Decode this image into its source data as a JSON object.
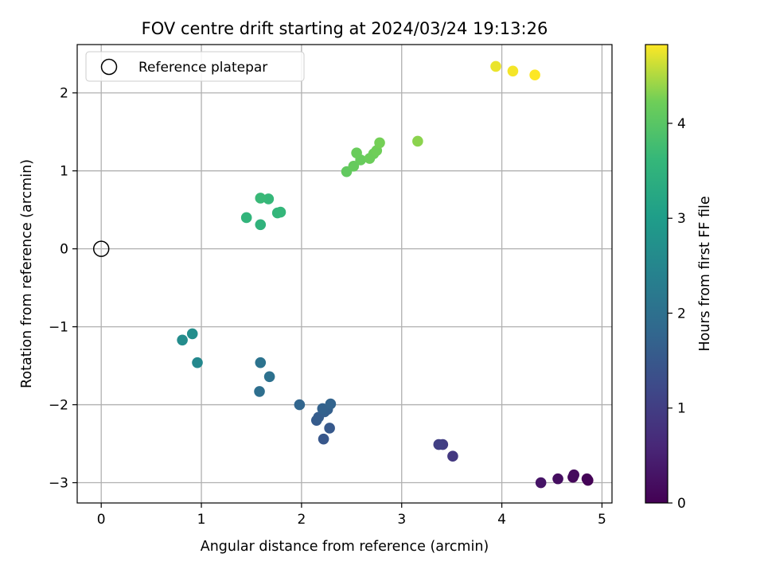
{
  "chart_data": {
    "type": "scatter",
    "title": "FOV centre drift starting at 2024/03/24 19:13:26",
    "xlabel": "Angular distance from reference (arcmin)",
    "ylabel": "Rotation from reference (arcmin)",
    "xlim": [
      -0.24,
      5.1
    ],
    "ylim": [
      -3.26,
      2.62
    ],
    "xticks": [
      0,
      1,
      2,
      3,
      4,
      5
    ],
    "xtick_labels": [
      "0",
      "1",
      "2",
      "3",
      "4",
      "5"
    ],
    "yticks": [
      -3,
      -2,
      -1,
      0,
      1,
      2
    ],
    "ytick_labels": [
      "−3",
      "−2",
      "−1",
      "0",
      "1",
      "2"
    ],
    "grid": true,
    "legend": {
      "placement": "top-left",
      "entries": [
        "Reference platepar"
      ]
    },
    "reference_point": {
      "x": 0,
      "y": 0,
      "marker": "open-circle"
    },
    "colorbar": {
      "label": "Hours from first FF file",
      "colormap": "viridis",
      "range": [
        0,
        4.83
      ],
      "ticks": [
        0,
        1,
        2,
        3,
        4
      ],
      "tick_labels": [
        "0",
        "1",
        "2",
        "3",
        "4"
      ]
    },
    "points": [
      {
        "x": 4.86,
        "y": -2.97,
        "hours": 0.0
      },
      {
        "x": 4.85,
        "y": -2.95,
        "hours": 0.05
      },
      {
        "x": 4.71,
        "y": -2.93,
        "hours": 0.1
      },
      {
        "x": 4.72,
        "y": -2.9,
        "hours": 0.15
      },
      {
        "x": 4.56,
        "y": -2.95,
        "hours": 0.2
      },
      {
        "x": 4.39,
        "y": -3.0,
        "hours": 0.3
      },
      {
        "x": 3.51,
        "y": -2.66,
        "hours": 0.9
      },
      {
        "x": 3.41,
        "y": -2.51,
        "hours": 0.98
      },
      {
        "x": 3.37,
        "y": -2.51,
        "hours": 1.02
      },
      {
        "x": 2.22,
        "y": -2.44,
        "hours": 1.48
      },
      {
        "x": 2.28,
        "y": -2.3,
        "hours": 1.52
      },
      {
        "x": 2.15,
        "y": -2.2,
        "hours": 1.56
      },
      {
        "x": 2.17,
        "y": -2.16,
        "hours": 1.6
      },
      {
        "x": 2.23,
        "y": -2.09,
        "hours": 1.63
      },
      {
        "x": 2.26,
        "y": -2.06,
        "hours": 1.66
      },
      {
        "x": 2.21,
        "y": -2.05,
        "hours": 1.7
      },
      {
        "x": 2.29,
        "y": -1.99,
        "hours": 1.73
      },
      {
        "x": 1.98,
        "y": -2.0,
        "hours": 1.78
      },
      {
        "x": 1.58,
        "y": -1.83,
        "hours": 1.98
      },
      {
        "x": 1.68,
        "y": -1.64,
        "hours": 2.02
      },
      {
        "x": 1.59,
        "y": -1.46,
        "hours": 2.06
      },
      {
        "x": 0.96,
        "y": -1.46,
        "hours": 2.55
      },
      {
        "x": 0.81,
        "y": -1.17,
        "hours": 2.62
      },
      {
        "x": 0.91,
        "y": -1.09,
        "hours": 2.68
      },
      {
        "x": 1.59,
        "y": 0.31,
        "hours": 3.5
      },
      {
        "x": 1.45,
        "y": 0.4,
        "hours": 3.55
      },
      {
        "x": 1.76,
        "y": 0.46,
        "hours": 3.58
      },
      {
        "x": 1.79,
        "y": 0.47,
        "hours": 3.6
      },
      {
        "x": 1.67,
        "y": 0.64,
        "hours": 3.63
      },
      {
        "x": 1.59,
        "y": 0.65,
        "hours": 3.66
      },
      {
        "x": 2.45,
        "y": 0.99,
        "hours": 4.1
      },
      {
        "x": 2.52,
        "y": 1.06,
        "hours": 4.13
      },
      {
        "x": 2.59,
        "y": 1.14,
        "hours": 4.15
      },
      {
        "x": 2.55,
        "y": 1.23,
        "hours": 4.17
      },
      {
        "x": 2.68,
        "y": 1.16,
        "hours": 4.19
      },
      {
        "x": 2.72,
        "y": 1.22,
        "hours": 4.21
      },
      {
        "x": 2.75,
        "y": 1.26,
        "hours": 4.23
      },
      {
        "x": 2.78,
        "y": 1.36,
        "hours": 4.25
      },
      {
        "x": 3.16,
        "y": 1.38,
        "hours": 4.35
      },
      {
        "x": 3.94,
        "y": 2.34,
        "hours": 4.75
      },
      {
        "x": 4.11,
        "y": 2.28,
        "hours": 4.79
      },
      {
        "x": 4.33,
        "y": 2.23,
        "hours": 4.83
      }
    ]
  }
}
